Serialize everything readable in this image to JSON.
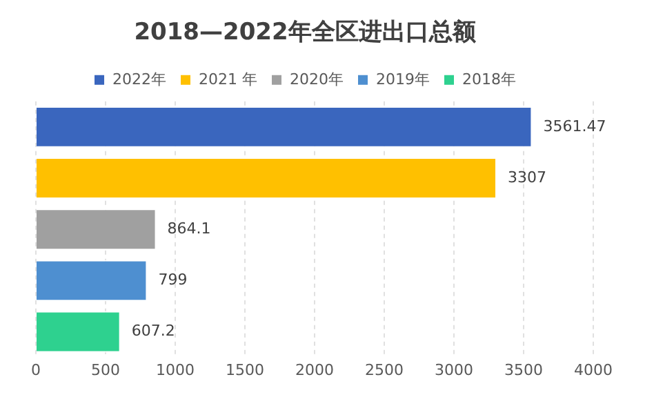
{
  "chart_data": {
    "type": "bar",
    "orientation": "horizontal",
    "title": "2018—2022年全区进出口总额",
    "categories": [
      null,
      null,
      null,
      null,
      null
    ],
    "series": [
      {
        "name": "2022年",
        "color": "#3a66be",
        "values": [
          3561.47,
          null,
          null,
          null,
          null
        ]
      },
      {
        "name": "2021 年",
        "color": "#ffc000",
        "values": [
          null,
          3307,
          null,
          null,
          null
        ]
      },
      {
        "name": "2020年",
        "color": "#a0a0a0",
        "values": [
          null,
          null,
          864.1,
          null,
          null
        ]
      },
      {
        "name": "2019年",
        "color": "#4e8fd0",
        "values": [
          null,
          null,
          null,
          799,
          null
        ]
      },
      {
        "name": "2018年",
        "color": "#2ed18f",
        "values": [
          null,
          null,
          null,
          null,
          607.2
        ]
      }
    ],
    "xlim": [
      0,
      4000
    ],
    "xticks": [
      0,
      500,
      1000,
      1500,
      2000,
      2500,
      3000,
      3500,
      4000
    ],
    "grid": "x",
    "legend": "top",
    "data_labels": true
  }
}
